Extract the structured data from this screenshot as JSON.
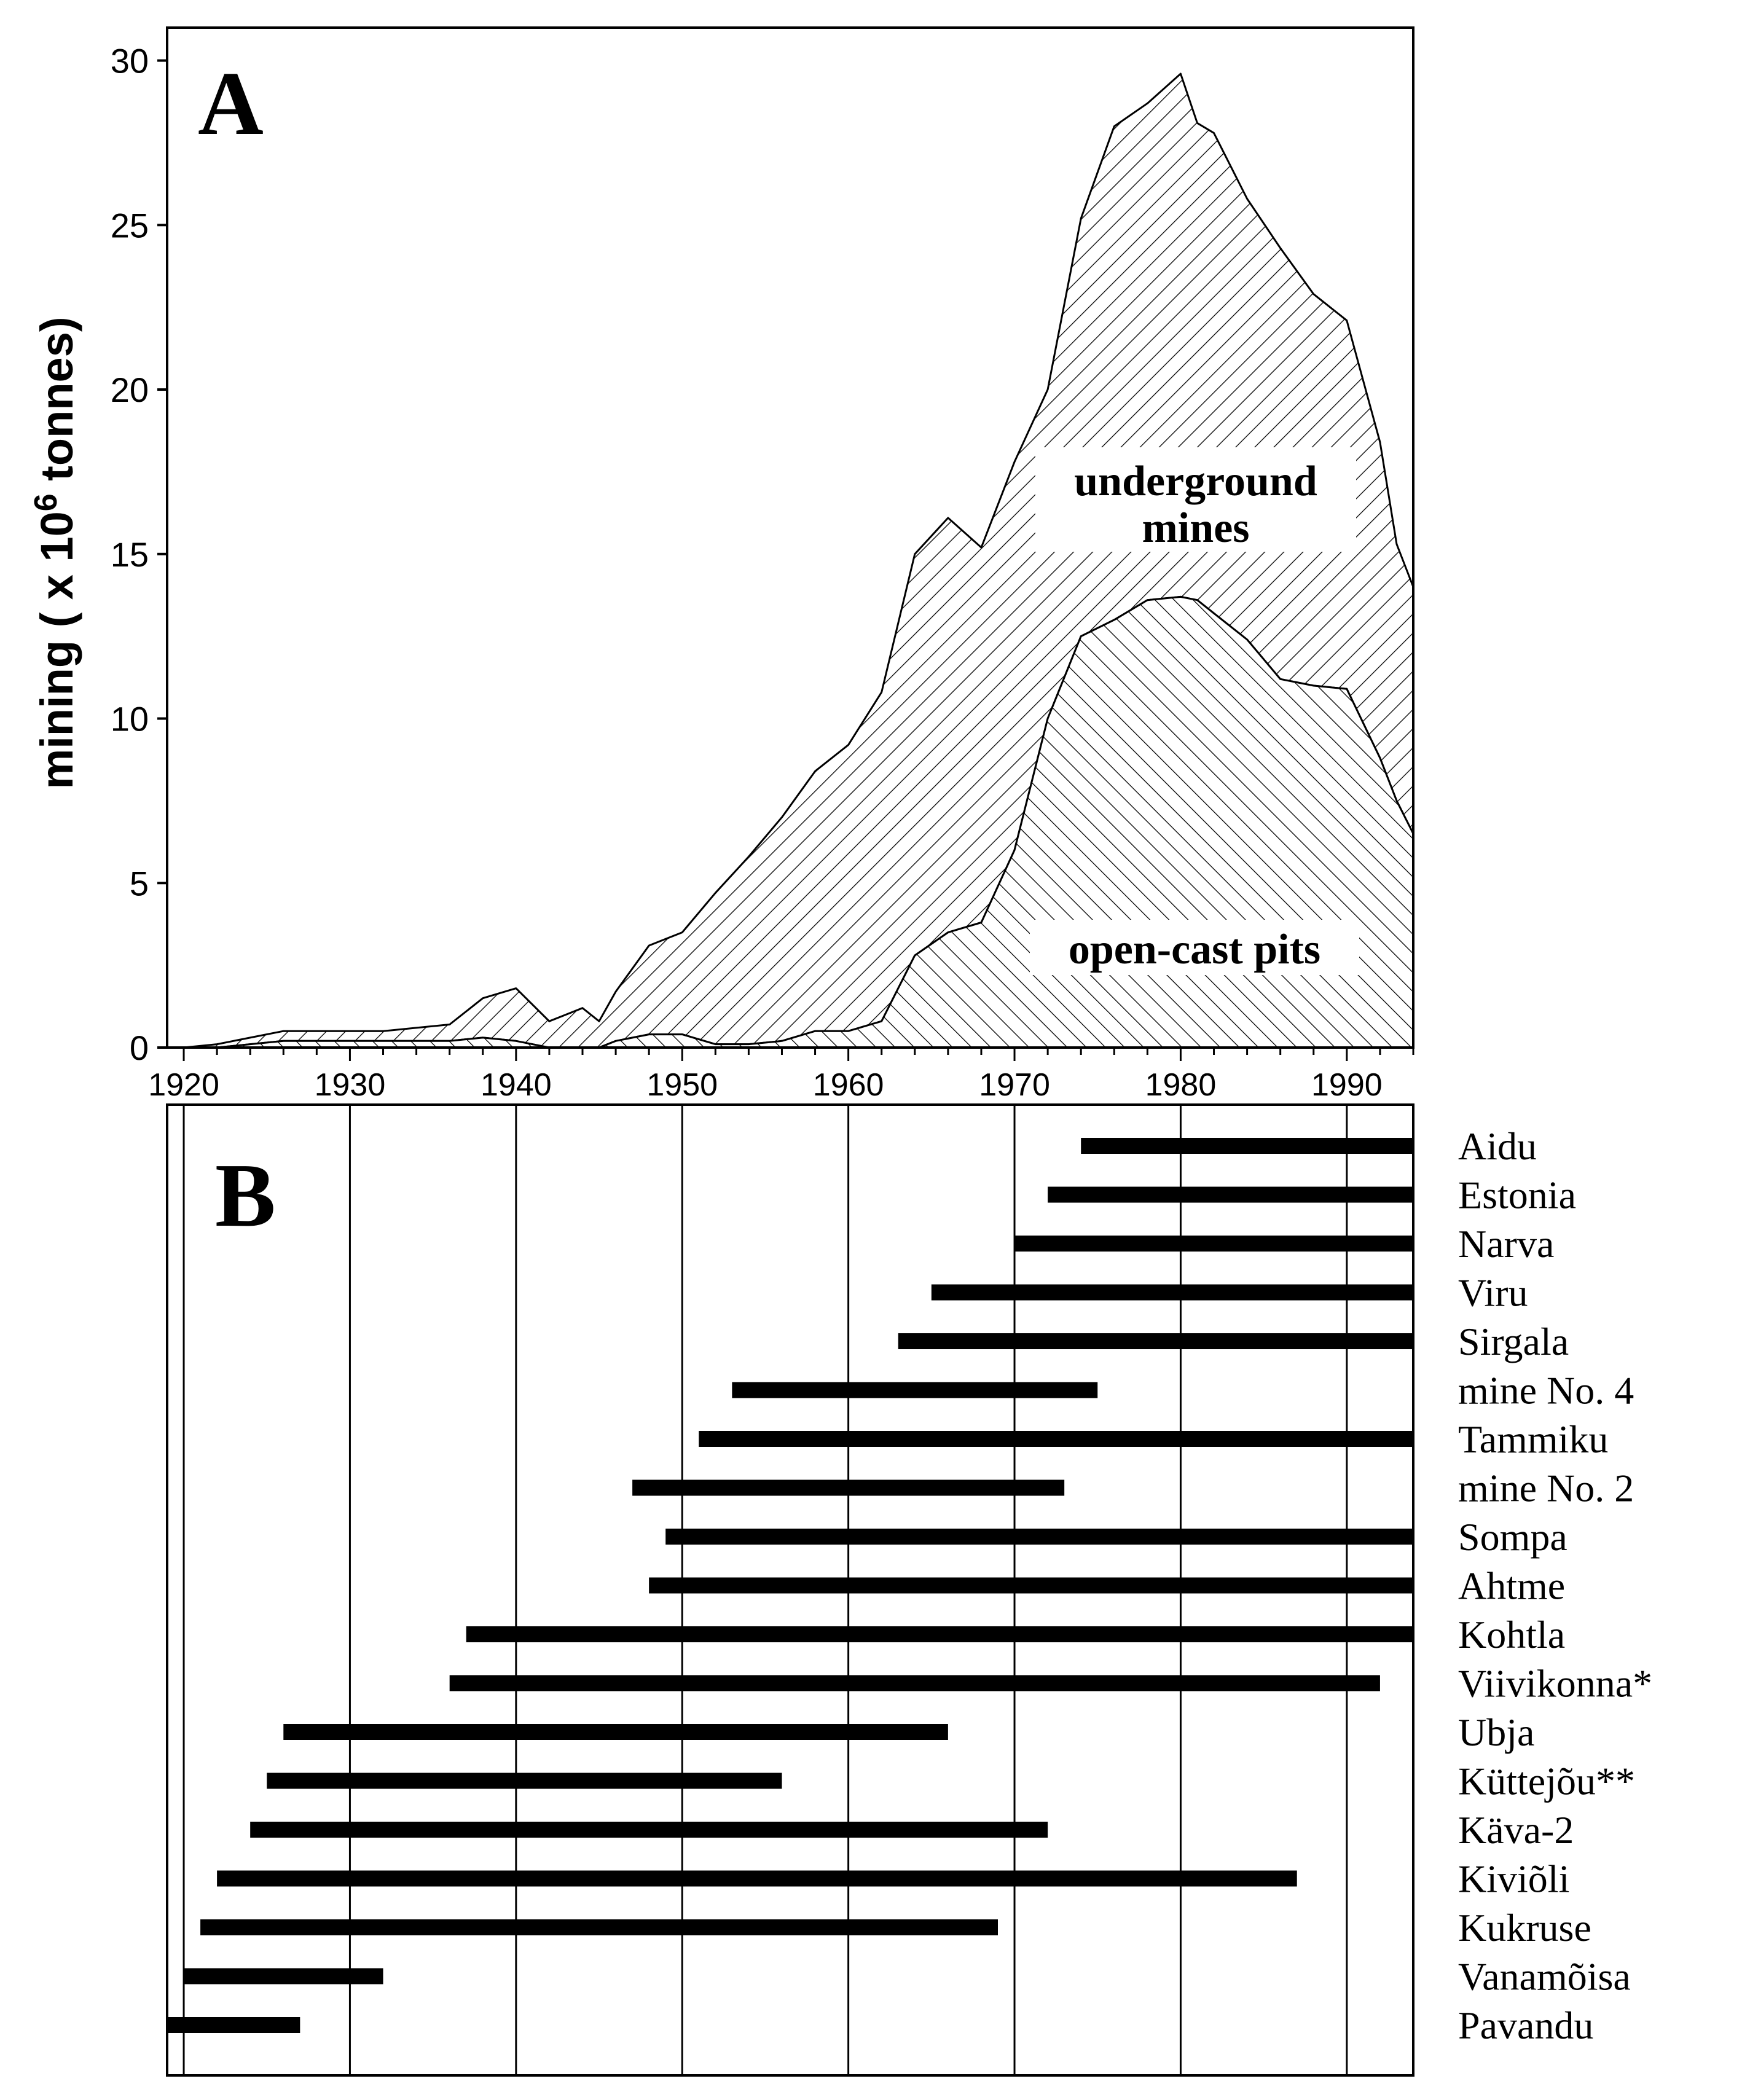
{
  "panel_a": {
    "panel_label": "A",
    "ylabel_prefix": "mining ( x 10",
    "ylabel_sup": "6",
    "ylabel_suffix": " tonnes)",
    "underground_label_line1": "underground",
    "underground_label_line2": "mines",
    "opencast_label": "open-cast pits"
  },
  "panel_b": {
    "panel_label": "B"
  },
  "colors": {
    "ink": "#000000",
    "background": "#ffffff"
  },
  "chart_data": [
    {
      "type": "area",
      "stacked": true,
      "xlim": [
        1919,
        1994
      ],
      "ylim": [
        0,
        31
      ],
      "xticks": [
        1920,
        1930,
        1940,
        1950,
        1960,
        1970,
        1980,
        1990
      ],
      "yticks": [
        0,
        5,
        10,
        15,
        20,
        25,
        30
      ],
      "x": [
        1920,
        1922,
        1924,
        1926,
        1928,
        1930,
        1932,
        1934,
        1936,
        1938,
        1940,
        1942,
        1944,
        1945,
        1946,
        1948,
        1950,
        1952,
        1954,
        1956,
        1958,
        1960,
        1962,
        1964,
        1966,
        1968,
        1970,
        1972,
        1974,
        1976,
        1978,
        1980,
        1981,
        1982,
        1984,
        1986,
        1988,
        1990,
        1992,
        1993,
        1994
      ],
      "series": [
        {
          "name": "open-cast pits",
          "values": [
            0,
            0,
            0.1,
            0.2,
            0.2,
            0.2,
            0.2,
            0.2,
            0.2,
            0.3,
            0.2,
            0,
            0,
            0,
            0.2,
            0.4,
            0.4,
            0.1,
            0.1,
            0.2,
            0.5,
            0.5,
            0.8,
            2.8,
            3.5,
            3.8,
            6.0,
            10.0,
            12.5,
            13.0,
            13.6,
            13.7,
            13.6,
            13.2,
            12.4,
            11.2,
            11.0,
            10.9,
            8.8,
            7.5,
            6.5
          ]
        },
        {
          "name": "underground mines",
          "values": [
            0,
            0.1,
            0.2,
            0.3,
            0.3,
            0.3,
            0.3,
            0.4,
            0.5,
            1.2,
            1.6,
            0.8,
            1.2,
            0.8,
            1.5,
            2.7,
            3.1,
            4.6,
            5.7,
            6.8,
            7.9,
            8.7,
            10.0,
            12.2,
            12.6,
            11.4,
            11.8,
            10.0,
            12.7,
            15.0,
            15.1,
            15.9,
            14.5,
            14.6,
            13.4,
            13.1,
            11.9,
            11.2,
            9.6,
            7.8,
            7.5
          ]
        }
      ]
    },
    {
      "type": "gantt",
      "xlim": [
        1919,
        1994
      ],
      "gridlines": [
        1920,
        1930,
        1940,
        1950,
        1960,
        1970,
        1980,
        1990
      ],
      "categories": [
        "Aidu",
        "Estonia",
        "Narva",
        "Viru",
        "Sirgala",
        "mine No. 4",
        "Tammiku",
        "mine No. 2",
        "Sompa",
        "Ahtme",
        "Kohtla",
        "Viivikonna*",
        "Ubja",
        "Küttejõu**",
        "Käva-2",
        "Kiviõli",
        "Kukruse",
        "Vanamõisa",
        "Pavandu"
      ],
      "values": [
        [
          1974,
          1994
        ],
        [
          1972,
          1994
        ],
        [
          1970,
          1994
        ],
        [
          1965,
          1994
        ],
        [
          1963,
          1994
        ],
        [
          1953,
          1975
        ],
        [
          1951,
          1994
        ],
        [
          1947,
          1973
        ],
        [
          1949,
          1994
        ],
        [
          1948,
          1994
        ],
        [
          1937,
          1994
        ],
        [
          1936,
          1992
        ],
        [
          1926,
          1966
        ],
        [
          1925,
          1956
        ],
        [
          1924,
          1972
        ],
        [
          1922,
          1987
        ],
        [
          1921,
          1969
        ],
        [
          1920,
          1932
        ],
        [
          1919,
          1927
        ]
      ]
    }
  ]
}
